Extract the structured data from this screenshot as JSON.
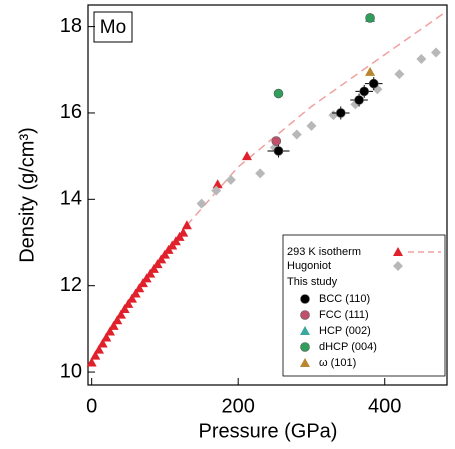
{
  "chart_data": {
    "type": "scatter",
    "annotation": "Mo",
    "x_label": "Pressure (GPa)",
    "y_label": "Density (g/cm³)",
    "xlim": [
      -5,
      485
    ],
    "xticks": [
      0,
      200,
      400
    ],
    "ylim": [
      9.7,
      18.5
    ],
    "yticks": [
      10,
      12,
      14,
      16,
      18
    ],
    "legend_subtitle": "This study",
    "legend_position": "lower right",
    "series": [
      {
        "name": "293 K isotherm",
        "color": "#e0202a",
        "marker": "triangle",
        "x": [
          0,
          5,
          10,
          15,
          20,
          25,
          30,
          35,
          40,
          45,
          50,
          55,
          60,
          65,
          70,
          75,
          80,
          85,
          90,
          95,
          100,
          105,
          110,
          115,
          120,
          125,
          130,
          172,
          212
        ],
        "values": [
          10.22,
          10.38,
          10.52,
          10.66,
          10.8,
          10.94,
          11.07,
          11.2,
          11.33,
          11.46,
          11.58,
          11.7,
          11.82,
          11.94,
          12.06,
          12.17,
          12.28,
          12.39,
          12.5,
          12.61,
          12.72,
          12.83,
          12.93,
          13.03,
          13.13,
          13.23,
          13.4,
          14.35,
          15.0
        ],
        "fit_x": [
          130,
          200,
          300,
          400,
          480
        ],
        "fit_values": [
          13.4,
          14.75,
          16.15,
          17.35,
          18.3
        ]
      },
      {
        "name": "Hugoniot",
        "color": "#b8b8b8",
        "marker": "diamond",
        "x": [
          150,
          170,
          190,
          230,
          250,
          280,
          300,
          330,
          360,
          390,
          420,
          450,
          470
        ],
        "values": [
          13.9,
          14.2,
          14.45,
          14.6,
          15.2,
          15.5,
          15.7,
          15.95,
          16.2,
          16.55,
          16.9,
          17.25,
          17.4
        ]
      },
      {
        "name": "BCC (110)",
        "color": "#000000",
        "marker": "circle",
        "x": [
          255,
          340,
          365,
          372,
          385
        ],
        "values": [
          15.12,
          16.0,
          16.3,
          16.5,
          16.68
        ],
        "xerr": [
          15,
          12,
          12,
          12,
          12
        ],
        "yerr": [
          0.15,
          0.15,
          0.15,
          0.15,
          0.15
        ]
      },
      {
        "name": "FCC (111)",
        "color": "#c0506a",
        "marker": "circle",
        "x": [
          252
        ],
        "values": [
          15.35
        ]
      },
      {
        "name": "HCP (002)",
        "color": "#3aa8a0",
        "marker": "triangle",
        "x": [
          380
        ],
        "values": [
          18.2
        ]
      },
      {
        "name": "dHCP (004)",
        "color": "#2e9e5a",
        "marker": "circle",
        "x": [
          255,
          380
        ],
        "values": [
          16.45,
          18.2
        ]
      },
      {
        "name": "ω (101)",
        "color": "#b8862e",
        "marker": "triangle",
        "x": [
          380
        ],
        "values": [
          16.95
        ]
      }
    ]
  }
}
